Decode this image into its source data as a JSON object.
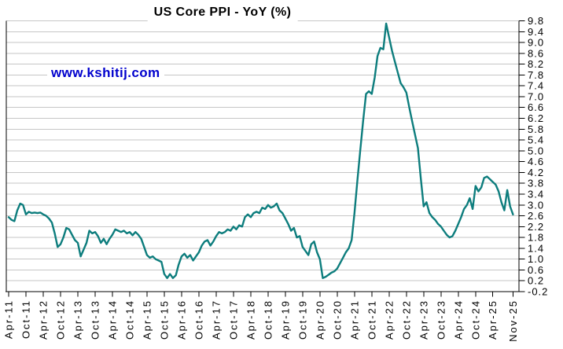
{
  "page": {
    "background": "#ffffff"
  },
  "chart_data": {
    "type": "line",
    "title": "US Core PPI - YoY (%)",
    "watermark": "www.kshitij.com",
    "legend": "none",
    "grid": "horizontal",
    "y_axis": {
      "min": -0.2,
      "max": 9.8,
      "step": 0.4,
      "side": "right"
    },
    "x_axis": {
      "ticks": [
        {
          "m": 0,
          "label": "Apr-11"
        },
        {
          "m": 6,
          "label": "Oct-11"
        },
        {
          "m": 12,
          "label": "Apr-12"
        },
        {
          "m": 18,
          "label": "Oct-12"
        },
        {
          "m": 24,
          "label": "Apr-13"
        },
        {
          "m": 30,
          "label": "Oct-13"
        },
        {
          "m": 36,
          "label": "Apr-14"
        },
        {
          "m": 42,
          "label": "Oct-14"
        },
        {
          "m": 48,
          "label": "Apr-15"
        },
        {
          "m": 54,
          "label": "Oct-15"
        },
        {
          "m": 60,
          "label": "Apr-16"
        },
        {
          "m": 66,
          "label": "Oct-16"
        },
        {
          "m": 72,
          "label": "Apr-17"
        },
        {
          "m": 78,
          "label": "Oct-17"
        },
        {
          "m": 84,
          "label": "Apr-18"
        },
        {
          "m": 90,
          "label": "Oct-18"
        },
        {
          "m": 96,
          "label": "Apr-19"
        },
        {
          "m": 102,
          "label": "Oct-19"
        },
        {
          "m": 108,
          "label": "Apr-20"
        },
        {
          "m": 114,
          "label": "Oct-20"
        },
        {
          "m": 120,
          "label": "Apr-21"
        },
        {
          "m": 126,
          "label": "Oct-21"
        },
        {
          "m": 132,
          "label": "Apr-22"
        },
        {
          "m": 138,
          "label": "Oct-22"
        },
        {
          "m": 144,
          "label": "Apr-23"
        },
        {
          "m": 150,
          "label": "Oct-23"
        },
        {
          "m": 156,
          "label": "Apr-24"
        },
        {
          "m": 162,
          "label": "Oct-24"
        },
        {
          "m": 168,
          "label": "Apr-25"
        },
        {
          "m": 175,
          "label": "Nov-25"
        }
      ]
    },
    "colors": {
      "line": "#0d7d7d",
      "grid": "#c6c6c6",
      "axis": "#000000",
      "watermark": "#0000cd",
      "title": "#000000"
    },
    "series": [
      {
        "name": "US Core PPI YoY %",
        "frequency": "monthly",
        "start": "Apr-2011",
        "end": "Nov-2025",
        "values": [
          2.55,
          2.45,
          2.4,
          2.8,
          3.05,
          3.0,
          2.65,
          2.75,
          2.7,
          2.72,
          2.7,
          2.72,
          2.65,
          2.6,
          2.5,
          2.35,
          1.95,
          1.45,
          1.55,
          1.8,
          2.15,
          2.1,
          1.9,
          1.7,
          1.6,
          1.1,
          1.35,
          1.6,
          2.05,
          1.95,
          2.0,
          1.85,
          1.6,
          1.75,
          1.55,
          1.75,
          1.9,
          2.1,
          2.05,
          2.0,
          2.05,
          1.95,
          2.0,
          1.88,
          2.0,
          1.9,
          1.75,
          1.45,
          1.15,
          1.05,
          1.1,
          1.0,
          0.95,
          0.9,
          0.45,
          0.3,
          0.45,
          0.3,
          0.4,
          0.8,
          1.1,
          1.2,
          1.05,
          1.15,
          0.95,
          1.1,
          1.25,
          1.5,
          1.65,
          1.7,
          1.5,
          1.65,
          1.85,
          2.0,
          1.95,
          2.0,
          2.1,
          2.05,
          2.2,
          2.1,
          2.25,
          2.2,
          2.55,
          2.65,
          2.55,
          2.7,
          2.75,
          2.7,
          2.9,
          2.85,
          3.0,
          2.9,
          2.95,
          3.05,
          2.8,
          2.7,
          2.5,
          2.3,
          2.05,
          2.15,
          1.8,
          1.85,
          1.45,
          1.3,
          1.15,
          1.55,
          1.65,
          1.25,
          1.0,
          0.3,
          0.35,
          0.42,
          0.5,
          0.55,
          0.65,
          0.85,
          1.05,
          1.25,
          1.4,
          1.7,
          2.7,
          3.9,
          5.0,
          6.1,
          7.1,
          7.2,
          7.1,
          7.7,
          8.5,
          8.8,
          8.75,
          9.7,
          9.2,
          8.7,
          8.3,
          7.9,
          7.5,
          7.35,
          7.15,
          6.6,
          6.1,
          5.6,
          5.1,
          4.0,
          2.95,
          3.1,
          2.7,
          2.55,
          2.45,
          2.3,
          2.2,
          2.05,
          1.9,
          1.8,
          1.85,
          2.05,
          2.3,
          2.55,
          2.85,
          3.0,
          3.25,
          2.85,
          3.7,
          3.5,
          3.65,
          4.0,
          4.05,
          3.95,
          3.85,
          3.75,
          3.5,
          3.1,
          2.8,
          3.55,
          2.95,
          2.65
        ]
      }
    ]
  }
}
